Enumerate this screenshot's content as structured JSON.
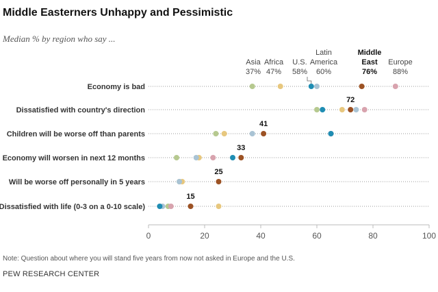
{
  "title": "Middle Easterners Unhappy and Pessimistic",
  "subtitle": "Median % by region who say ...",
  "note": "Note: Question about where you will stand five years from now not asked in Europe and the U.S.",
  "source": "PEW RESEARCH CENTER",
  "chart_data": {
    "type": "dot",
    "title": "Middle Easterners Unhappy and Pessimistic",
    "subtitle": "Median % by region who say ...",
    "xlim": [
      0,
      100
    ],
    "xticks": [
      0,
      20,
      40,
      60,
      80,
      100
    ],
    "categories": [
      "Economy is bad",
      "Dissatisfied with country's direction",
      "Children will be worse off than parents",
      "Economy will worsen in next 12 months",
      "Will be worse off personally in 5 years",
      "Dissatisfied with life (0-3 on a 0-10 scale)"
    ],
    "series": [
      {
        "name": "Asia",
        "color": "#b6c98f",
        "values": [
          37,
          60,
          24,
          10,
          11,
          7
        ]
      },
      {
        "name": "Africa",
        "color": "#e7c77e",
        "values": [
          47,
          69,
          27,
          18,
          12,
          25
        ]
      },
      {
        "name": "U.S.",
        "color": "#1f8db3",
        "values": [
          58,
          62,
          65,
          30,
          null,
          4
        ]
      },
      {
        "name": "Latin America",
        "color": "#a9c3d4",
        "values": [
          60,
          74,
          37,
          17,
          11,
          5
        ]
      },
      {
        "name": "Middle East",
        "color": "#9c5224",
        "values": [
          76,
          72,
          41,
          33,
          25,
          15
        ]
      },
      {
        "name": "Europe",
        "color": "#d8a3ae",
        "values": [
          88,
          77,
          65,
          23,
          null,
          8
        ]
      }
    ],
    "legend": [
      {
        "line1": "Asia",
        "line2": "37%"
      },
      {
        "line1": "Africa",
        "line2": "47%"
      },
      {
        "line1": "U.S.",
        "line2": "58%"
      },
      {
        "line1": "Latin",
        "line1b": "America",
        "line2": "60%"
      },
      {
        "line1": "Middle",
        "line1b": "East",
        "line2": "76%"
      },
      {
        "line1": "Europe",
        "line2": "88%"
      }
    ],
    "highlight_labels": [
      "",
      "72",
      "41",
      "33",
      "25",
      "15"
    ]
  }
}
